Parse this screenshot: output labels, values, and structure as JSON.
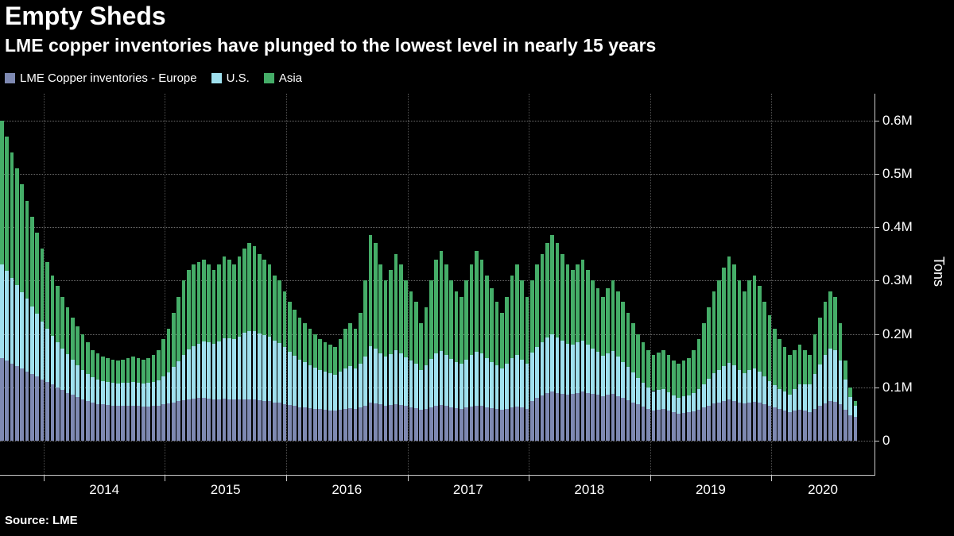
{
  "header": {
    "title": "Empty Sheds",
    "subtitle": "LME copper inventories have plunged to the lowest level in nearly 15 years"
  },
  "footer": {
    "source": "Source: LME"
  },
  "chart_data": {
    "type": "bar",
    "stacked": true,
    "title": "Empty Sheds",
    "subtitle": "LME copper inventories have plunged to the lowest level in nearly 15 years",
    "ylabel": "Tons",
    "unit": "millions of tons",
    "background": "#000000",
    "grid": "dotted horizontal lines at each 0.1M and dotted vertical lines at year boundaries",
    "legend_position": "top-left",
    "ylim": [
      0,
      0.65
    ],
    "y_ticks": [
      0,
      0.1,
      0.2,
      0.3,
      0.4,
      0.5,
      0.6
    ],
    "y_tick_labels": [
      "0",
      "0.1M",
      "0.2M",
      "0.3M",
      "0.4M",
      "0.5M",
      "0.6M"
    ],
    "x_axis": {
      "start_year": 2013.64,
      "end_year": 2020.72
    },
    "x_year_boundaries": [
      2014,
      2015,
      2016,
      2017,
      2018,
      2019,
      2020
    ],
    "x_tick_labels": [
      "2014",
      "2015",
      "2016",
      "2017",
      "2018",
      "2019",
      "2020"
    ],
    "series": [
      {
        "name": "LME Copper inventories - Europe",
        "color": "#7e89b2",
        "values": [
          0.155,
          0.15,
          0.145,
          0.14,
          0.135,
          0.13,
          0.125,
          0.12,
          0.115,
          0.11,
          0.105,
          0.1,
          0.095,
          0.09,
          0.086,
          0.082,
          0.078,
          0.074,
          0.071,
          0.069,
          0.068,
          0.067,
          0.066,
          0.065,
          0.065,
          0.066,
          0.066,
          0.065,
          0.064,
          0.064,
          0.065,
          0.066,
          0.068,
          0.07,
          0.072,
          0.074,
          0.076,
          0.078,
          0.079,
          0.08,
          0.08,
          0.079,
          0.078,
          0.078,
          0.079,
          0.078,
          0.077,
          0.077,
          0.078,
          0.078,
          0.077,
          0.076,
          0.075,
          0.074,
          0.072,
          0.071,
          0.069,
          0.067,
          0.065,
          0.063,
          0.062,
          0.061,
          0.06,
          0.059,
          0.058,
          0.057,
          0.056,
          0.058,
          0.06,
          0.061,
          0.06,
          0.062,
          0.066,
          0.072,
          0.07,
          0.068,
          0.066,
          0.067,
          0.069,
          0.067,
          0.065,
          0.063,
          0.061,
          0.058,
          0.06,
          0.063,
          0.066,
          0.067,
          0.065,
          0.063,
          0.061,
          0.06,
          0.062,
          0.064,
          0.066,
          0.065,
          0.063,
          0.061,
          0.059,
          0.058,
          0.06,
          0.063,
          0.064,
          0.062,
          0.06,
          0.075,
          0.08,
          0.085,
          0.09,
          0.092,
          0.09,
          0.088,
          0.086,
          0.088,
          0.09,
          0.092,
          0.09,
          0.088,
          0.086,
          0.084,
          0.086,
          0.088,
          0.084,
          0.08,
          0.076,
          0.072,
          0.068,
          0.064,
          0.06,
          0.057,
          0.058,
          0.059,
          0.056,
          0.053,
          0.051,
          0.052,
          0.053,
          0.055,
          0.058,
          0.062,
          0.066,
          0.07,
          0.072,
          0.075,
          0.077,
          0.075,
          0.072,
          0.07,
          0.072,
          0.073,
          0.071,
          0.068,
          0.065,
          0.062,
          0.059,
          0.057,
          0.054,
          0.056,
          0.058,
          0.056,
          0.054,
          0.06,
          0.065,
          0.07,
          0.074,
          0.073,
          0.068,
          0.058,
          0.048,
          0.044
        ]
      },
      {
        "name": "U.S.",
        "color": "#9fe0ee",
        "values": [
          0.175,
          0.168,
          0.16,
          0.152,
          0.144,
          0.136,
          0.127,
          0.118,
          0.108,
          0.1,
          0.092,
          0.085,
          0.078,
          0.072,
          0.066,
          0.06,
          0.055,
          0.051,
          0.048,
          0.046,
          0.044,
          0.043,
          0.042,
          0.042,
          0.043,
          0.043,
          0.044,
          0.044,
          0.043,
          0.044,
          0.045,
          0.047,
          0.052,
          0.058,
          0.066,
          0.075,
          0.085,
          0.093,
          0.098,
          0.102,
          0.106,
          0.105,
          0.104,
          0.108,
          0.113,
          0.114,
          0.113,
          0.118,
          0.124,
          0.128,
          0.128,
          0.125,
          0.123,
          0.121,
          0.115,
          0.112,
          0.106,
          0.099,
          0.094,
          0.089,
          0.085,
          0.081,
          0.077,
          0.073,
          0.071,
          0.069,
          0.067,
          0.071,
          0.076,
          0.079,
          0.076,
          0.082,
          0.092,
          0.105,
          0.102,
          0.096,
          0.091,
          0.095,
          0.1,
          0.096,
          0.091,
          0.087,
          0.083,
          0.075,
          0.081,
          0.09,
          0.098,
          0.101,
          0.096,
          0.09,
          0.086,
          0.084,
          0.09,
          0.096,
          0.101,
          0.098,
          0.092,
          0.087,
          0.082,
          0.078,
          0.084,
          0.092,
          0.096,
          0.09,
          0.084,
          0.09,
          0.096,
          0.1,
          0.104,
          0.107,
          0.104,
          0.1,
          0.096,
          0.092,
          0.094,
          0.096,
          0.09,
          0.085,
          0.08,
          0.075,
          0.078,
          0.08,
          0.074,
          0.068,
          0.062,
          0.056,
          0.05,
          0.045,
          0.04,
          0.036,
          0.037,
          0.038,
          0.035,
          0.032,
          0.03,
          0.031,
          0.032,
          0.034,
          0.038,
          0.044,
          0.05,
          0.056,
          0.06,
          0.065,
          0.069,
          0.066,
          0.06,
          0.056,
          0.06,
          0.062,
          0.058,
          0.052,
          0.047,
          0.042,
          0.038,
          0.035,
          0.032,
          0.04,
          0.048,
          0.05,
          0.052,
          0.065,
          0.078,
          0.09,
          0.098,
          0.096,
          0.082,
          0.056,
          0.034,
          0.021
        ]
      },
      {
        "name": "Asia",
        "color": "#45ad68",
        "values": [
          0.27,
          0.252,
          0.235,
          0.218,
          0.201,
          0.184,
          0.168,
          0.152,
          0.137,
          0.125,
          0.113,
          0.105,
          0.097,
          0.088,
          0.078,
          0.073,
          0.067,
          0.06,
          0.051,
          0.048,
          0.046,
          0.045,
          0.044,
          0.043,
          0.044,
          0.046,
          0.048,
          0.046,
          0.045,
          0.047,
          0.05,
          0.057,
          0.07,
          0.082,
          0.102,
          0.121,
          0.139,
          0.149,
          0.153,
          0.153,
          0.154,
          0.146,
          0.138,
          0.144,
          0.153,
          0.148,
          0.14,
          0.15,
          0.158,
          0.164,
          0.16,
          0.149,
          0.142,
          0.135,
          0.123,
          0.117,
          0.105,
          0.094,
          0.086,
          0.078,
          0.073,
          0.068,
          0.063,
          0.058,
          0.056,
          0.054,
          0.052,
          0.061,
          0.074,
          0.08,
          0.074,
          0.096,
          0.142,
          0.208,
          0.198,
          0.166,
          0.143,
          0.158,
          0.181,
          0.167,
          0.144,
          0.13,
          0.116,
          0.087,
          0.109,
          0.147,
          0.176,
          0.187,
          0.169,
          0.147,
          0.133,
          0.126,
          0.148,
          0.17,
          0.188,
          0.177,
          0.155,
          0.137,
          0.119,
          0.104,
          0.126,
          0.155,
          0.17,
          0.148,
          0.126,
          0.135,
          0.154,
          0.165,
          0.176,
          0.186,
          0.176,
          0.162,
          0.148,
          0.14,
          0.146,
          0.152,
          0.14,
          0.127,
          0.119,
          0.111,
          0.121,
          0.132,
          0.122,
          0.112,
          0.102,
          0.092,
          0.082,
          0.076,
          0.07,
          0.067,
          0.07,
          0.073,
          0.069,
          0.065,
          0.064,
          0.067,
          0.07,
          0.081,
          0.094,
          0.114,
          0.134,
          0.154,
          0.168,
          0.185,
          0.199,
          0.189,
          0.168,
          0.154,
          0.168,
          0.175,
          0.161,
          0.14,
          0.123,
          0.106,
          0.093,
          0.083,
          0.074,
          0.074,
          0.074,
          0.064,
          0.054,
          0.075,
          0.087,
          0.1,
          0.108,
          0.101,
          0.07,
          0.036,
          0.018,
          0.01
        ]
      }
    ]
  }
}
